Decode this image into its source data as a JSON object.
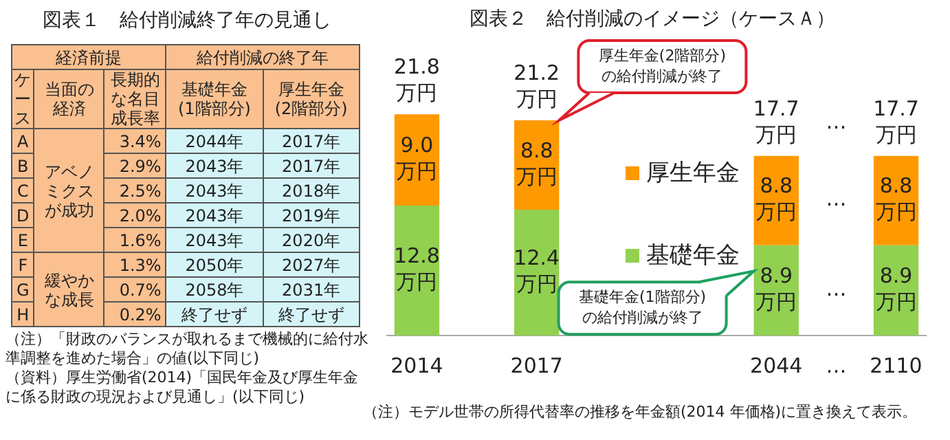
{
  "chart_data": [
    {
      "type": "other",
      "title": "図表１　給付削減終了年の見通し",
      "annotations": [
        "経済前提",
        "給付削減の終了年",
        "ケース",
        "当面の経済",
        "長期的な名目成長率",
        "基礎年金",
        "(1階部分)",
        "厚生年金",
        "(2階部分)",
        "A",
        "B",
        "C",
        "D",
        "E",
        "F",
        "G",
        "H",
        "アベノミクスが成功",
        "緩やかな成長",
        "3.4%",
        "2.9%",
        "2.5%",
        "2.0%",
        "1.6%",
        "1.3%",
        "0.7%",
        "0.2%",
        "2044年",
        "2043年",
        "2043年",
        "2043年",
        "2043年",
        "2050年",
        "2058年",
        "終了せず",
        "2017年",
        "2017年",
        "2018年",
        "2019年",
        "2020年",
        "2027年",
        "2031年",
        "終了せず",
        "（注）「財政のバランスが取れるまで機械的に給付水準調整を進めた場合」の値(以下同じ)",
        "（資料）厚生労働省(2014)「国民年金及び厚生年金に係る財政の現況および見通し」(以下同じ)"
      ]
    },
    {
      "type": "bar",
      "title": "図表２　給付削減のイメージ（ケースＡ）",
      "stacked": true,
      "legend": "center",
      "categories": [
        "2014",
        null,
        "2017",
        null,
        null,
        null,
        "2044",
        "…",
        "2110"
      ],
      "series": [
        {
          "name": "基礎年金",
          "color": "#92d050",
          "values": [
            12.8,
            null,
            12.4,
            null,
            null,
            null,
            8.9,
            null,
            8.9
          ],
          "value_labels": [
            "12.8\n万円",
            null,
            "12.4\n万円",
            null,
            null,
            null,
            "8.9\n万円",
            null,
            "8.9\n万円"
          ]
        },
        {
          "name": "厚生年金",
          "color": "#ff9900",
          "values": [
            9.0,
            null,
            8.8,
            null,
            null,
            null,
            8.8,
            null,
            8.8
          ],
          "value_labels": [
            "9.0\n万円",
            null,
            "8.8\n万円",
            null,
            null,
            null,
            "8.8\n万円",
            null,
            "8.8\n万円"
          ]
        }
      ],
      "totals": [
        "21.8\n万円",
        null,
        "21.2\n万円",
        null,
        null,
        null,
        "17.7\n万円",
        null,
        "17.7\n万円"
      ],
      "annotations": [
        "厚生年金(2階部分)\nの給付削減が終了",
        "基礎年金(1階部分)\nの給付削減が終了",
        "…",
        "…",
        "…",
        "（注）モデル世帯の所得代替率の推移を年金額(2014 年価格)に置き換えて表示。"
      ]
    }
  ]
}
